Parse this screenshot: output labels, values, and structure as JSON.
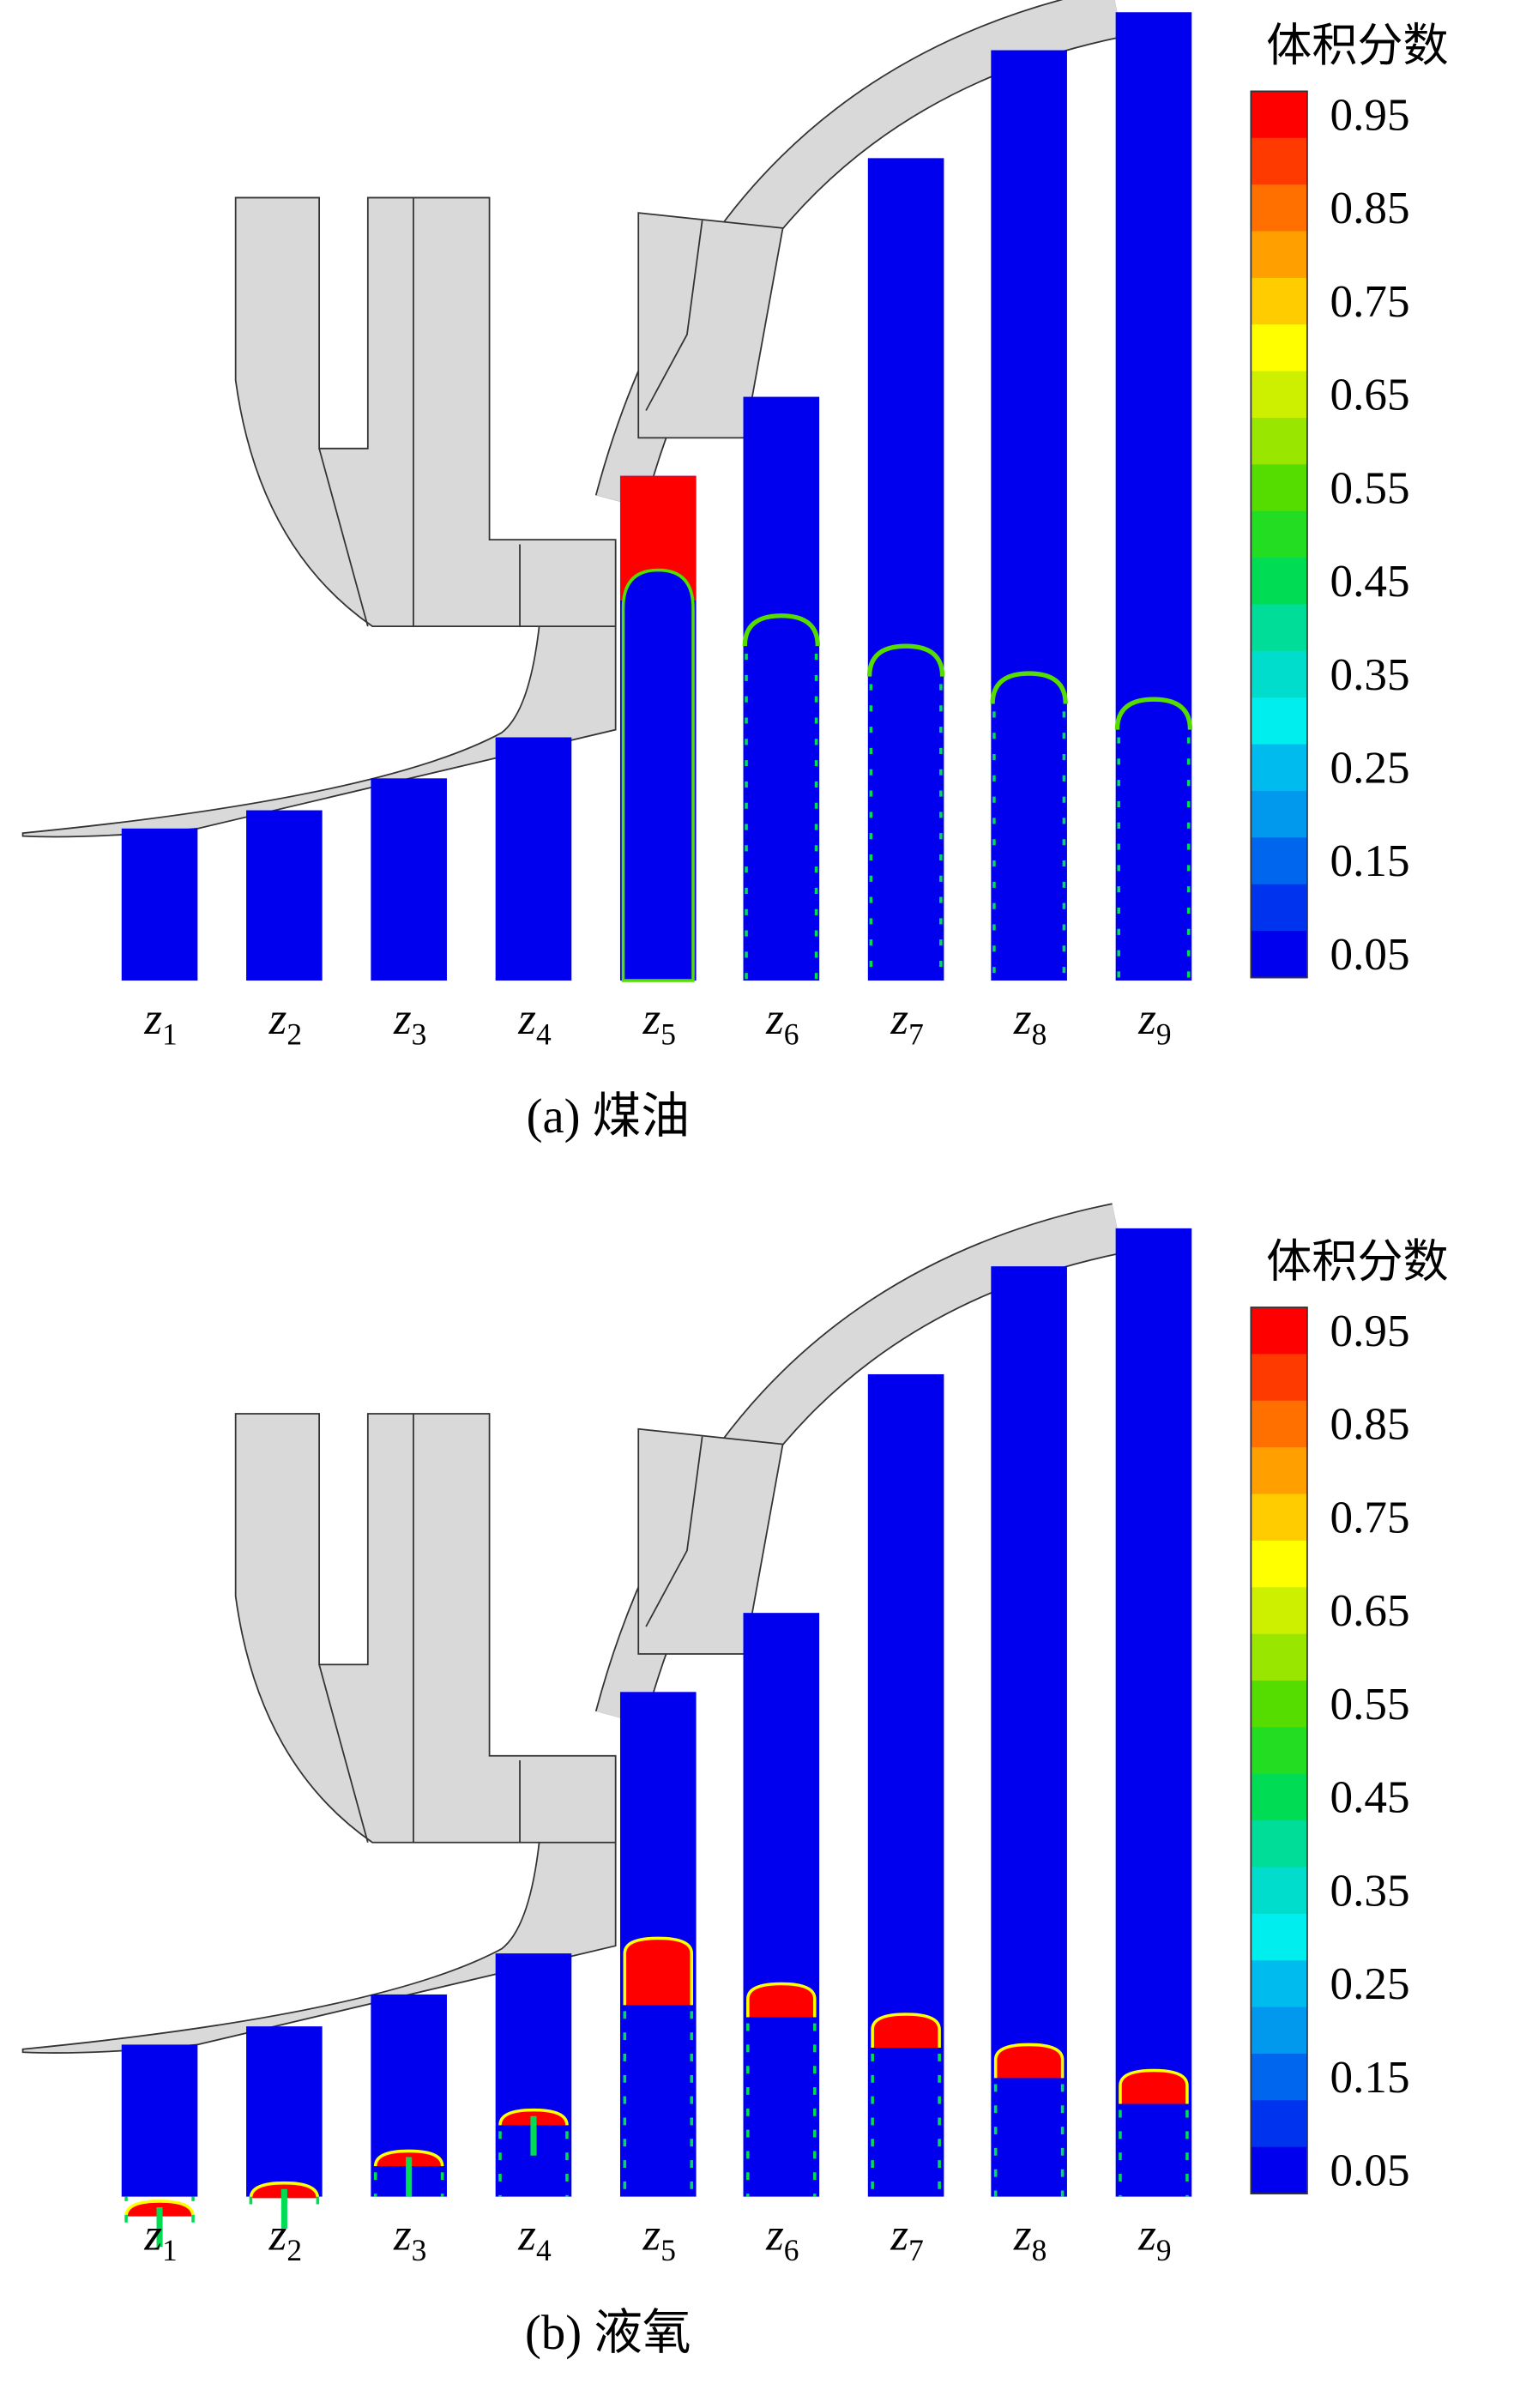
{
  "colorbar_colors": [
    "#ff0000",
    "#ff3a00",
    "#ff7000",
    "#ffa000",
    "#ffcc00",
    "#ffff00",
    "#ccf000",
    "#99e600",
    "#55dd00",
    "#22dd22",
    "#00dd55",
    "#00dd99",
    "#00ddcc",
    "#00eeee",
    "#00bbee",
    "#0099ee",
    "#0066ee",
    "#0033ee",
    "#0000ee"
  ],
  "panels": [
    {
      "caption": "(a) 煤油",
      "colorbar": {
        "title": "体积分数",
        "ticks": [
          "0.95",
          "0.85",
          "0.75",
          "0.65",
          "0.55",
          "0.45",
          "0.35",
          "0.25",
          "0.15",
          "0.05"
        ]
      },
      "slices": [
        {
          "var": "z",
          "sub": "1"
        },
        {
          "var": "z",
          "sub": "2"
        },
        {
          "var": "z",
          "sub": "3"
        },
        {
          "var": "z",
          "sub": "4"
        },
        {
          "var": "z",
          "sub": "5"
        },
        {
          "var": "z",
          "sub": "6"
        },
        {
          "var": "z",
          "sub": "7"
        },
        {
          "var": "z",
          "sub": "8"
        },
        {
          "var": "z",
          "sub": "9"
        }
      ]
    },
    {
      "caption": "(b) 液氧",
      "colorbar": {
        "title": "体积分数",
        "ticks": [
          "0.95",
          "0.85",
          "0.75",
          "0.65",
          "0.55",
          "0.45",
          "0.35",
          "0.25",
          "0.15",
          "0.05"
        ]
      },
      "slices": [
        {
          "var": "z",
          "sub": "1"
        },
        {
          "var": "z",
          "sub": "2"
        },
        {
          "var": "z",
          "sub": "3"
        },
        {
          "var": "z",
          "sub": "4"
        },
        {
          "var": "z",
          "sub": "5"
        },
        {
          "var": "z",
          "sub": "6"
        },
        {
          "var": "z",
          "sub": "7"
        },
        {
          "var": "z",
          "sub": "8"
        },
        {
          "var": "z",
          "sub": "9"
        }
      ]
    }
  ]
}
